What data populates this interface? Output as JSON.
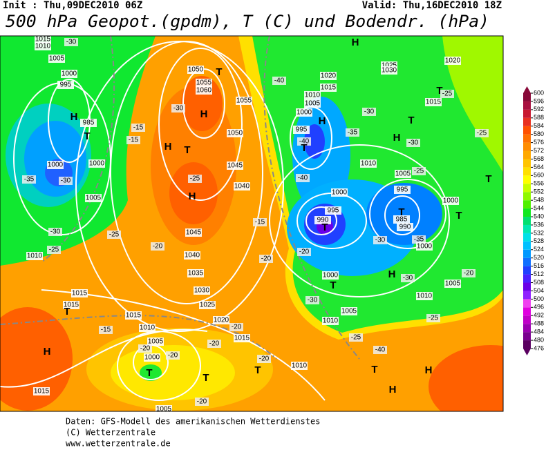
{
  "header": {
    "init": "Init : Thu,09DEC2010 06Z",
    "valid": "Valid: Thu,16DEC2010 18Z",
    "title": "500 hPa Geopot.(gpdm), T (C) und Bodendr. (hPa)"
  },
  "colorbar": {
    "ticks": [
      476,
      480,
      484,
      488,
      492,
      496,
      500,
      504,
      508,
      512,
      516,
      520,
      524,
      528,
      532,
      536,
      540,
      544,
      548,
      552,
      556,
      560,
      564,
      568,
      572,
      576,
      580,
      584,
      588,
      592,
      596,
      600
    ],
    "colors": [
      "#5a0060",
      "#7a0090",
      "#9a00b0",
      "#c000c8",
      "#e000e0",
      "#f040f0",
      "#9020ff",
      "#6a00e8",
      "#4a20ff",
      "#2040ff",
      "#1070ff",
      "#0098ff",
      "#00c0ff",
      "#00e0e8",
      "#00e8b0",
      "#00e070",
      "#10e820",
      "#50f000",
      "#90f800",
      "#c8ff00",
      "#ffff00",
      "#ffe000",
      "#ffc400",
      "#ffa800",
      "#ff8c00",
      "#ff7000",
      "#ff5000",
      "#e83020",
      "#c81830",
      "#a81040",
      "#880838"
    ]
  },
  "map": {
    "labels": [
      "1015",
      "1010",
      "-30",
      "1005",
      "1000",
      "995",
      "H",
      "985",
      "T",
      "1000",
      "1000",
      "-35",
      "-30",
      "1005",
      "-30",
      "-25",
      "1010",
      "-25",
      "-15",
      "-15",
      "H",
      "T",
      "1050",
      "T",
      "1055",
      "1060",
      "H",
      "1055",
      "1050",
      "-30",
      "-25",
      "H",
      "1045",
      "1040",
      "1045",
      "-20",
      "1040",
      "1035",
      "1030",
      "1025",
      "1020",
      "1015",
      "-20",
      "-20",
      "1015",
      "1015",
      "T",
      "1015",
      "1010",
      "-15",
      "H",
      "1005",
      "-20",
      "1000",
      "-20",
      "T",
      "T",
      "-20",
      "1015",
      "-20",
      "1005",
      "-20",
      "T",
      "1010",
      "1020",
      "1015",
      "1010",
      "1005",
      "1000",
      "995",
      "-40",
      "T",
      "H",
      "-40",
      "-35",
      "-30",
      "H",
      "1025",
      "1030",
      "T",
      "1015",
      "T",
      "H",
      "-30",
      "-25",
      "1020",
      "-25",
      "-25",
      "1005",
      "1010",
      "-40",
      "1000",
      "995",
      "990",
      "T",
      "995",
      "T",
      "985",
      "990",
      "-35",
      "1000",
      "-30",
      "1000",
      "T",
      "T",
      "H",
      "-30",
      "1005",
      "-20",
      "1000",
      "T",
      "-30",
      "1005",
      "1010",
      "-25",
      "1010",
      "-25",
      "-20",
      "-40",
      "H",
      "H",
      "T",
      "-15",
      "-25"
    ]
  },
  "footer": {
    "lines": [
      "Daten: GFS-Modell des amerikanischen Wetterdienstes",
      "(C) Wetterzentrale",
      "www.wetterzentrale.de"
    ]
  }
}
